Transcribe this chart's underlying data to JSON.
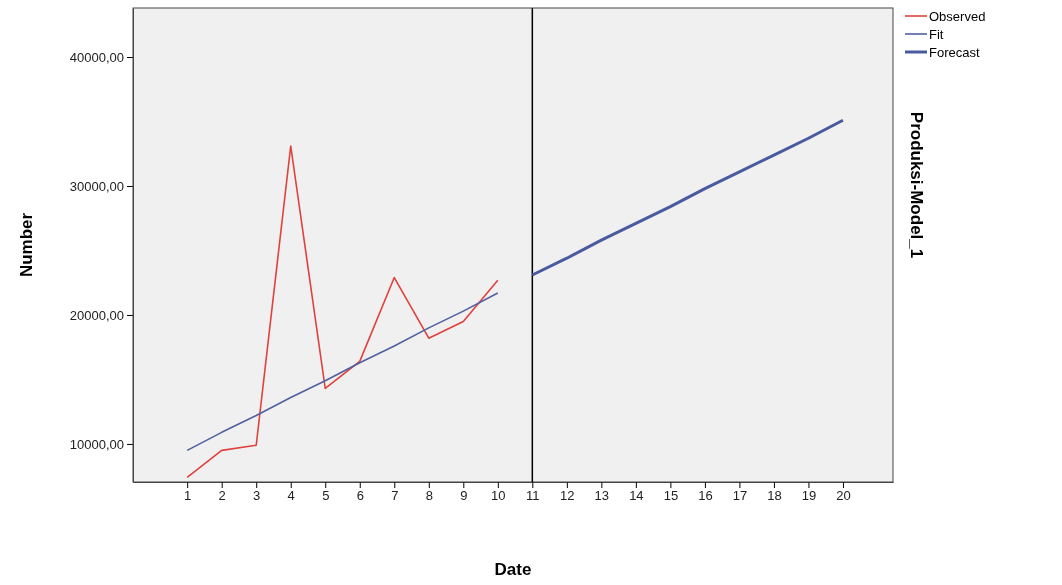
{
  "chart_data": {
    "type": "line",
    "xlabel": "Date",
    "ylabel": "Number",
    "annotations": [
      "Produksi-Model_1"
    ],
    "xlim": [
      -0.57,
      21.45
    ],
    "ylim": [
      7050,
      43800
    ],
    "xticks": [
      1,
      2,
      3,
      4,
      5,
      6,
      7,
      8,
      9,
      10,
      11,
      12,
      13,
      14,
      15,
      16,
      17,
      18,
      19,
      20
    ],
    "yticks": [
      {
        "value": 10000,
        "label": "10000,00"
      },
      {
        "value": 20000,
        "label": "20000,00"
      },
      {
        "value": 30000,
        "label": "30000,00"
      },
      {
        "value": 40000,
        "label": "40000,00"
      }
    ],
    "series": [
      {
        "name": "Observed",
        "color": "#e0413c",
        "x": [
          1,
          2,
          3,
          4,
          5,
          6,
          7,
          8,
          9,
          10
        ],
        "values": [
          7400,
          9500,
          9900,
          33100,
          14300,
          16400,
          22900,
          18200,
          19500,
          22700
        ]
      },
      {
        "name": "Fit",
        "color": "#5060a0",
        "x": [
          1,
          2,
          3,
          4,
          5,
          6,
          7,
          8,
          9,
          10
        ],
        "values": [
          9500,
          10900,
          12200,
          13600,
          14900,
          16300,
          17600,
          19000,
          20300,
          21700
        ]
      },
      {
        "name": "Forecast",
        "color": "#4a5a9e",
        "x": [
          11,
          12,
          13,
          14,
          15,
          16,
          17,
          18,
          19,
          20
        ],
        "values": [
          23100,
          24400,
          25800,
          27100,
          28400,
          29800,
          31100,
          32400,
          33700,
          35100
        ]
      }
    ],
    "ref_lines": [
      {
        "axis": "x",
        "value": 11,
        "color": "#000000"
      }
    ],
    "legend": "top right",
    "grid": false,
    "marker": "none",
    "line_style": "solid"
  }
}
